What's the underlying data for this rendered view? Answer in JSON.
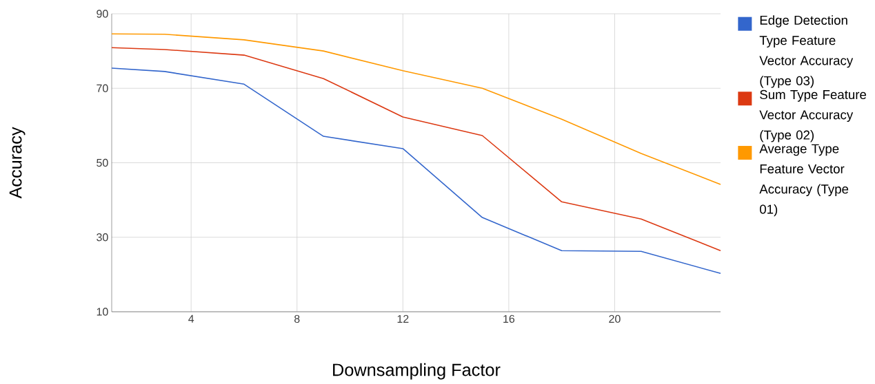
{
  "chart_data": {
    "type": "line",
    "xlabel": "Downsampling Factor",
    "ylabel": "Accuracy",
    "x": [
      1,
      3,
      6,
      9,
      12,
      15,
      18,
      21,
      24
    ],
    "series": [
      {
        "name": "Edge Detection Type Feature Vector Accuracy (Type 03)",
        "color": "#3366cc",
        "values": [
          75.4,
          74.5,
          71.1,
          57.1,
          53.8,
          35.3,
          26.4,
          26.2,
          20.3
        ]
      },
      {
        "name": "Sum Type Feature Vector Accuracy (Type 02)",
        "color": "#dc3912",
        "values": [
          80.9,
          80.4,
          78.9,
          72.6,
          62.3,
          57.3,
          39.5,
          34.9,
          26.4
        ]
      },
      {
        "name": "Average Type Feature Vector Accuracy (Type 01)",
        "color": "#ff9900",
        "values": [
          84.6,
          84.5,
          83.0,
          80.0,
          74.7,
          70.0,
          61.7,
          52.5,
          44.2
        ]
      }
    ],
    "xlim": [
      1,
      24
    ],
    "ylim": [
      10,
      90
    ],
    "xticks": [
      4,
      8,
      12,
      16,
      20
    ],
    "yticks": [
      10,
      30,
      50,
      70,
      90
    ],
    "grid": true,
    "legend": "right",
    "marker": "none",
    "line_style": "solid"
  }
}
